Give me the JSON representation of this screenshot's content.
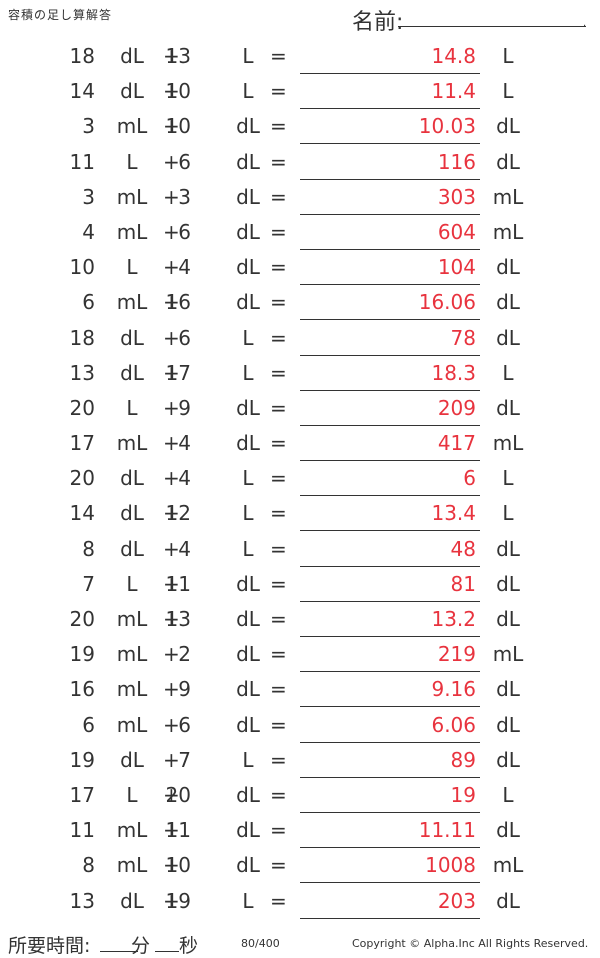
{
  "header": {
    "title": "容積の足し算解答",
    "name_label": "名前:",
    "name_dot": "."
  },
  "operator": "+",
  "equals": "=",
  "problems": [
    {
      "a": "18",
      "u1": "dL",
      "b": "13",
      "u2": "L",
      "answer": "14.8",
      "u3": "L"
    },
    {
      "a": "14",
      "u1": "dL",
      "b": "10",
      "u2": "L",
      "answer": "11.4",
      "u3": "L"
    },
    {
      "a": "3",
      "u1": "mL",
      "b": "10",
      "u2": "dL",
      "answer": "10.03",
      "u3": "dL"
    },
    {
      "a": "11",
      "u1": "L",
      "b": "6",
      "u2": "dL",
      "answer": "116",
      "u3": "dL"
    },
    {
      "a": "3",
      "u1": "mL",
      "b": "3",
      "u2": "dL",
      "answer": "303",
      "u3": "mL"
    },
    {
      "a": "4",
      "u1": "mL",
      "b": "6",
      "u2": "dL",
      "answer": "604",
      "u3": "mL"
    },
    {
      "a": "10",
      "u1": "L",
      "b": "4",
      "u2": "dL",
      "answer": "104",
      "u3": "dL"
    },
    {
      "a": "6",
      "u1": "mL",
      "b": "16",
      "u2": "dL",
      "answer": "16.06",
      "u3": "dL"
    },
    {
      "a": "18",
      "u1": "dL",
      "b": "6",
      "u2": "L",
      "answer": "78",
      "u3": "dL"
    },
    {
      "a": "13",
      "u1": "dL",
      "b": "17",
      "u2": "L",
      "answer": "18.3",
      "u3": "L"
    },
    {
      "a": "20",
      "u1": "L",
      "b": "9",
      "u2": "dL",
      "answer": "209",
      "u3": "dL"
    },
    {
      "a": "17",
      "u1": "mL",
      "b": "4",
      "u2": "dL",
      "answer": "417",
      "u3": "mL"
    },
    {
      "a": "20",
      "u1": "dL",
      "b": "4",
      "u2": "L",
      "answer": "6",
      "u3": "L"
    },
    {
      "a": "14",
      "u1": "dL",
      "b": "12",
      "u2": "L",
      "answer": "13.4",
      "u3": "L"
    },
    {
      "a": "8",
      "u1": "dL",
      "b": "4",
      "u2": "L",
      "answer": "48",
      "u3": "dL"
    },
    {
      "a": "7",
      "u1": "L",
      "b": "11",
      "u2": "dL",
      "answer": "81",
      "u3": "dL"
    },
    {
      "a": "20",
      "u1": "mL",
      "b": "13",
      "u2": "dL",
      "answer": "13.2",
      "u3": "dL"
    },
    {
      "a": "19",
      "u1": "mL",
      "b": "2",
      "u2": "dL",
      "answer": "219",
      "u3": "mL"
    },
    {
      "a": "16",
      "u1": "mL",
      "b": "9",
      "u2": "dL",
      "answer": "9.16",
      "u3": "dL"
    },
    {
      "a": "6",
      "u1": "mL",
      "b": "6",
      "u2": "dL",
      "answer": "6.06",
      "u3": "dL"
    },
    {
      "a": "19",
      "u1": "dL",
      "b": "7",
      "u2": "L",
      "answer": "89",
      "u3": "dL"
    },
    {
      "a": "17",
      "u1": "L",
      "b": "20",
      "u2": "dL",
      "answer": "19",
      "u3": "L"
    },
    {
      "a": "11",
      "u1": "mL",
      "b": "11",
      "u2": "dL",
      "answer": "11.11",
      "u3": "dL"
    },
    {
      "a": "8",
      "u1": "mL",
      "b": "10",
      "u2": "dL",
      "answer": "1008",
      "u3": "mL"
    },
    {
      "a": "13",
      "u1": "dL",
      "b": "19",
      "u2": "L",
      "answer": "203",
      "u3": "dL"
    }
  ],
  "footer": {
    "time_label": "所要時間:",
    "minutes_label": "分",
    "seconds_label": "秒",
    "page": "80/400",
    "copyright": "Copyright © Alpha.Inc All Rights Reserved."
  },
  "colors": {
    "answer": "#e8333e",
    "text": "#333333"
  }
}
